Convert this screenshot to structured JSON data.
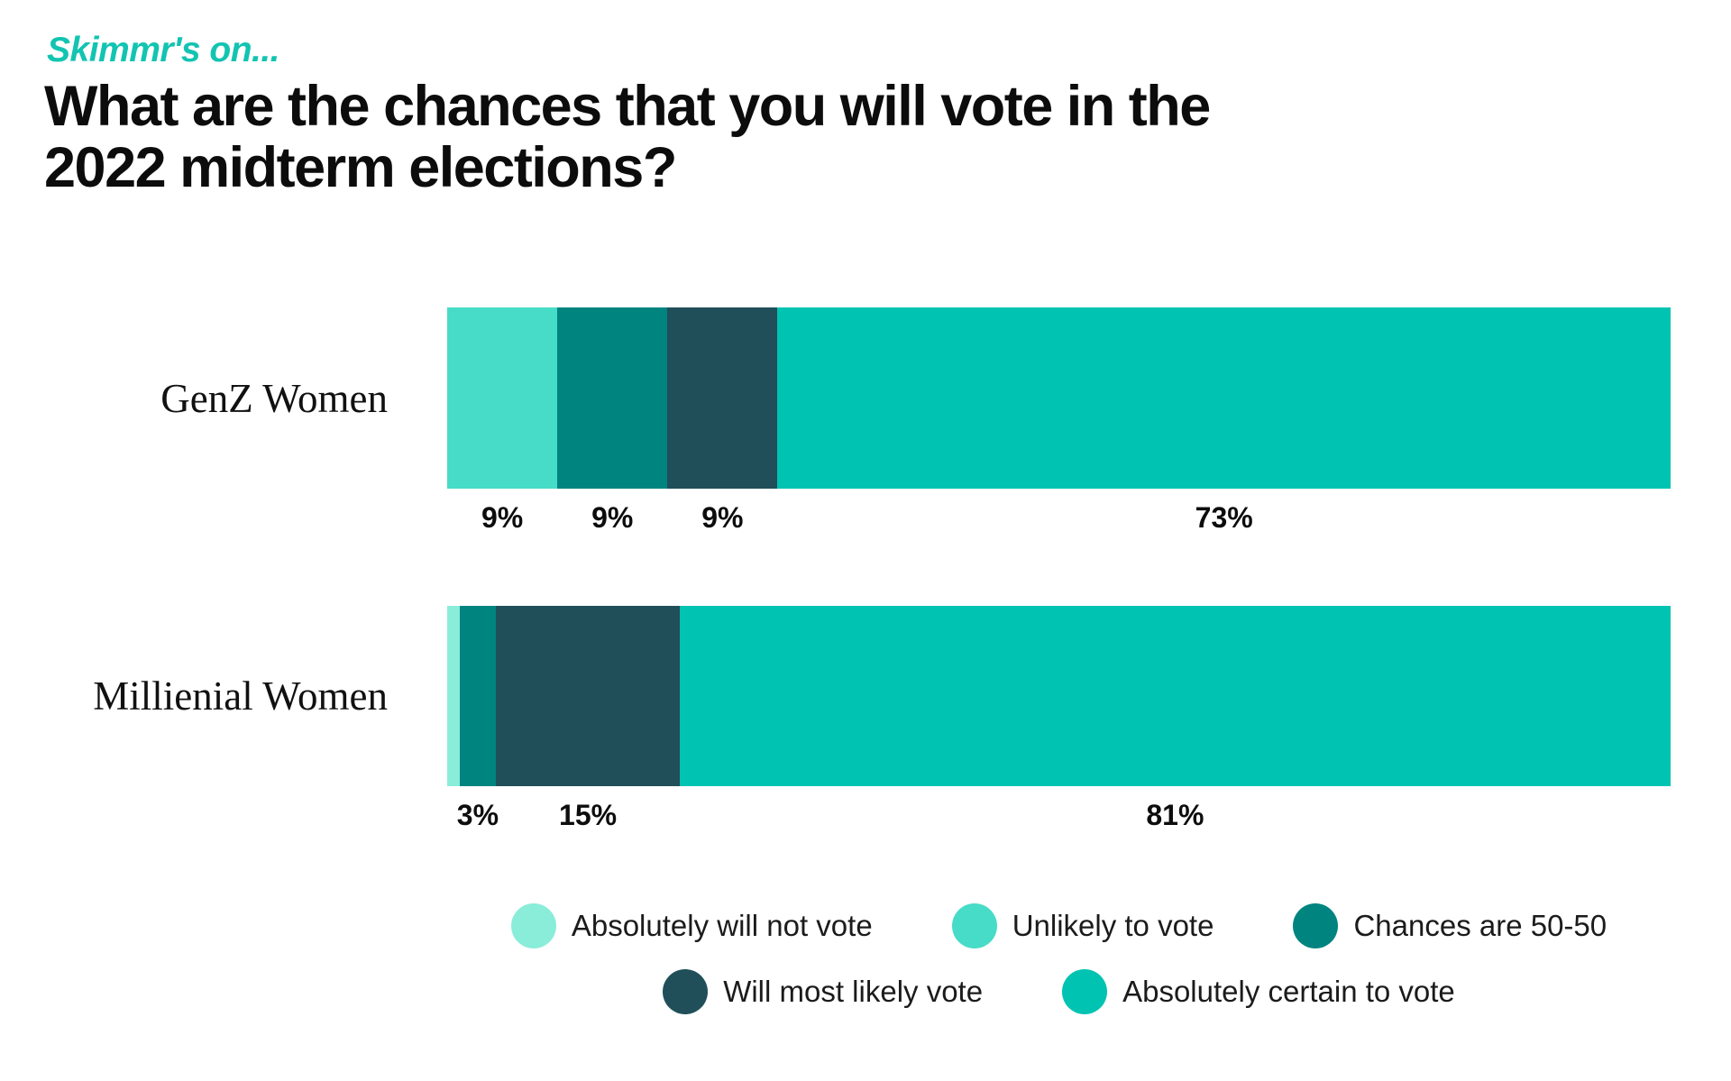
{
  "header": {
    "eyebrow": "Skimmr's on...",
    "title": "What are the chances that you will vote in the 2022 midterm elections?",
    "title_lines": [
      "What are the chances that you will vote in the",
      "2022 midterm elections?"
    ]
  },
  "colors": {
    "background": "#ffffff",
    "accent_teal": "#12c4b1",
    "text": "#0c0c0c",
    "absolutely_will_not_vote": "#8aedd9",
    "unlikely_to_vote": "#47dcc7",
    "chances_5050": "#008480",
    "will_most_likely_vote": "#204f59",
    "absolutely_certain_to_vote": "#00c3b2"
  },
  "chart_data": {
    "type": "bar",
    "variant": "horizontal-stacked",
    "eyebrow": "Skimmr's on...",
    "title": "What are the chances that you will vote in the 2022 midterm elections?",
    "unit": "%",
    "xlim": [
      0,
      100
    ],
    "grid": false,
    "legend_position": "bottom",
    "categories": [
      "GenZ Women",
      "Millienial Women"
    ],
    "series": [
      {
        "name": "Absolutely will not vote",
        "color": "#8aedd9",
        "values": [
          0,
          1
        ]
      },
      {
        "name": "Unlikely to vote",
        "color": "#47dcc7",
        "values": [
          9,
          0
        ]
      },
      {
        "name": "Chances are 50-50",
        "color": "#008480",
        "values": [
          9,
          3
        ]
      },
      {
        "name": "Will most likely vote",
        "color": "#204f59",
        "values": [
          9,
          15
        ]
      },
      {
        "name": "Absolutely certain to vote",
        "color": "#00c3b2",
        "values": [
          73,
          81
        ]
      }
    ],
    "rows": [
      {
        "category": "GenZ Women",
        "segments": [
          {
            "series": "Unlikely to vote",
            "color": "#47dcc7",
            "value": 9,
            "label": "9%"
          },
          {
            "series": "Chances are 50-50",
            "color": "#008480",
            "value": 9,
            "label": "9%"
          },
          {
            "series": "Will most likely vote",
            "color": "#204f59",
            "value": 9,
            "label": "9%"
          },
          {
            "series": "Absolutely certain to vote",
            "color": "#00c3b2",
            "value": 73,
            "label": "73%"
          }
        ]
      },
      {
        "category": "Millienial Women",
        "segments": [
          {
            "series": "Absolutely will not vote",
            "color": "#8aedd9",
            "value": 1,
            "label": ""
          },
          {
            "series": "Chances are 50-50",
            "color": "#008480",
            "value": 3,
            "label": "3%"
          },
          {
            "series": "Will most likely vote",
            "color": "#204f59",
            "value": 15,
            "label": "15%"
          },
          {
            "series": "Absolutely certain to vote",
            "color": "#00c3b2",
            "value": 81,
            "label": "81%"
          }
        ]
      }
    ],
    "legend_rows": [
      [
        {
          "label": "Absolutely will not vote",
          "color": "#8aedd9"
        },
        {
          "label": "Unlikely to vote",
          "color": "#47dcc7"
        },
        {
          "label": "Chances are 50-50",
          "color": "#008480"
        }
      ],
      [
        {
          "label": "Will most likely vote",
          "color": "#204f59"
        },
        {
          "label": "Absolutely certain to vote",
          "color": "#00c3b2"
        }
      ]
    ]
  }
}
